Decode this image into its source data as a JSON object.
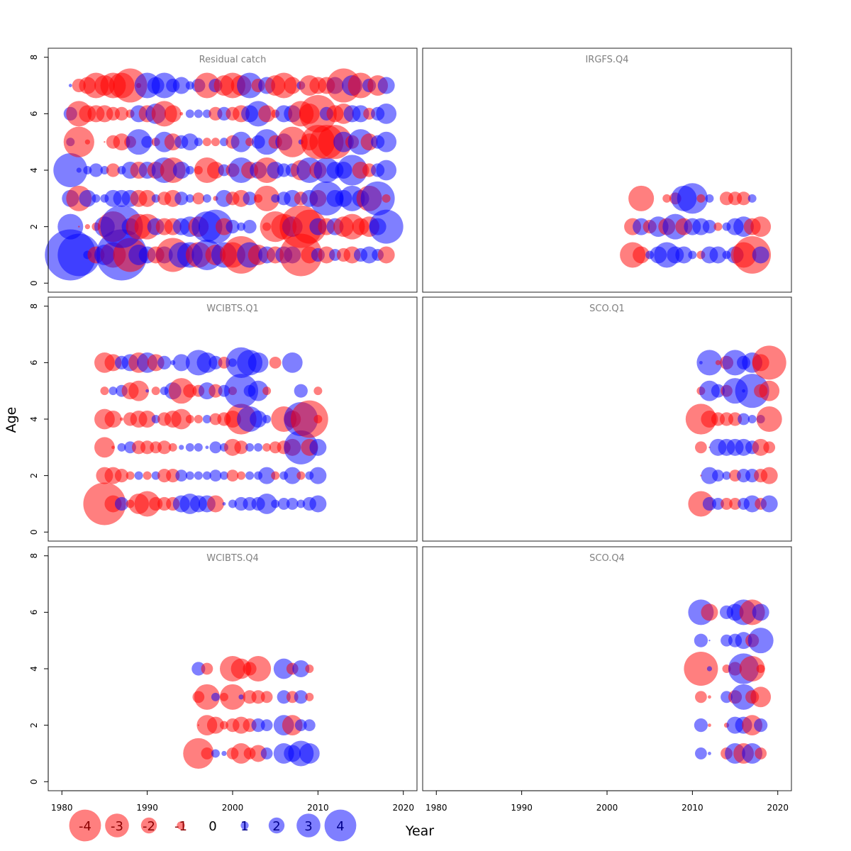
{
  "chart_data": {
    "type": "scatter",
    "subtype": "bubble",
    "xlabel": "Year",
    "ylabel": "Age",
    "xlim": [
      1978.4,
      2021.6
    ],
    "ylim": [
      -0.32,
      8.32
    ],
    "x_ticks": [
      "1980",
      "1990",
      "2000",
      "2010",
      "2020"
    ],
    "y_ticks": [
      "0",
      "2",
      "4",
      "6",
      "8"
    ],
    "colors": {
      "positive": "#0000ff",
      "negative": "#ff0000",
      "alpha": 0.5
    },
    "legend": {
      "values": [
        -4,
        -3,
        -2,
        -1,
        0,
        1,
        2,
        3,
        4
      ],
      "labels": [
        "-4",
        "-3",
        "-2",
        "-1",
        "0",
        "1",
        "2",
        "3",
        "4"
      ],
      "placement": "bottom-left"
    },
    "panels": [
      {
        "title": "Residual catch",
        "ages": [
          1,
          2,
          3,
          4,
          5,
          6,
          7
        ],
        "years": [
          1981,
          1982,
          1983,
          1984,
          1985,
          1986,
          1987,
          1988,
          1989,
          1990,
          1991,
          1992,
          1993,
          1994,
          1995,
          1996,
          1997,
          1998,
          1999,
          2000,
          2001,
          2002,
          2003,
          2004,
          2005,
          2006,
          2007,
          2008,
          2009,
          2010,
          2011,
          2012,
          2013,
          2014,
          2015,
          2016,
          2017,
          2018
        ],
        "residuals": [
          [
            3.0,
            2.5,
            0.5,
            -1.0,
            1.2,
            -1.5,
            3.0,
            -2.0,
            1.2,
            1.0,
            -1.0,
            1.0,
            -2.0,
            1.5,
            1.5,
            -1.5,
            1.8,
            -1.2,
            1.5,
            -1.5,
            -2.2,
            1.5,
            -1.2,
            1.0,
            -1.0,
            1.0,
            1.0,
            -2.5,
            -1.0,
            0.8,
            -1.0,
            0.7,
            -0.8,
            -1.0,
            0.8,
            1.0,
            0.7,
            -1.0
          ],
          [
            1.5,
            -0.1,
            -0.3,
            -0.5,
            1.2,
            -1.8,
            2.5,
            1.0,
            -1.5,
            -1.5,
            1.0,
            -1.0,
            -1.0,
            1.0,
            1.2,
            -1.2,
            1.8,
            2.0,
            -1.0,
            0.8,
            0.5,
            0.8,
            0,
            -0.5,
            -1.8,
            -1.5,
            1.2,
            -2.5,
            -2.0,
            1.0,
            -1.0,
            1.0,
            -1.2,
            -1.5,
            -1.0,
            -1.2,
            1.0,
            2.0
          ],
          [
            1.0,
            -1.5,
            1.0,
            0.5,
            0.5,
            1.0,
            1.0,
            1.0,
            -1.0,
            -1.0,
            0.5,
            -0.8,
            -1.0,
            0.8,
            0.5,
            -0.7,
            0.5,
            -0.3,
            1.0,
            -0.8,
            -1.0,
            0.8,
            -0.5,
            -1.5,
            0.5,
            0.8,
            1.0,
            -0.8,
            1.0,
            -1.0,
            2.0,
            1.0,
            1.0,
            1.5,
            1.0,
            -1.5,
            2.0,
            -0.5
          ],
          [
            2.0,
            0.3,
            0.5,
            0.8,
            0.5,
            -0.8,
            0.5,
            1.0,
            -1.0,
            1.0,
            -1.0,
            1.5,
            -1.5,
            1.0,
            0.5,
            -0.5,
            -1.5,
            -1.0,
            0.7,
            -0.8,
            1.5,
            -1.0,
            1.0,
            -1.5,
            1.0,
            0.8,
            0.8,
            -1.2,
            1.5,
            -1.0,
            1.5,
            1.0,
            1.0,
            1.8,
            -1.0,
            -0.8,
            0.8,
            1.2
          ],
          [
            0.5,
            -1.8,
            -0.3,
            0.0,
            -0.1,
            -0.8,
            -1.0,
            -0.7,
            1.5,
            0.7,
            -0.5,
            1.2,
            -1.0,
            0.8,
            1.0,
            0.5,
            -0.5,
            -0.5,
            0.5,
            -0.8,
            1.2,
            -0.5,
            0.8,
            1.5,
            -0.8,
            1.0,
            -1.8,
            0.3,
            -1.0,
            -2.0,
            -2.0,
            -2.0,
            1.2,
            -0.8,
            1.5,
            -1.0,
            0.8,
            1.2
          ],
          [
            0.8,
            -1.5,
            -1.0,
            -1.0,
            -1.0,
            -0.8,
            -0.8,
            -0.5,
            1.0,
            -1.0,
            1.2,
            -1.5,
            -1.0,
            -0.2,
            0.5,
            0.5,
            0.5,
            -0.8,
            0.8,
            -0.8,
            -1.0,
            1.0,
            1.5,
            -1.0,
            -0.5,
            1.0,
            1.0,
            -1.5,
            -1.2,
            -2.2,
            0.8,
            -1.0,
            -1.2,
            1.0,
            1.0,
            -0.7,
            0.8,
            1.2
          ],
          [
            0.2,
            -0.8,
            -1.0,
            -1.5,
            -1.2,
            -1.5,
            -1.5,
            -2.0,
            -0.3,
            1.5,
            1.0,
            1.5,
            0.8,
            1.0,
            0.5,
            0.8,
            -1.5,
            0.8,
            -1.2,
            -1.5,
            -1.2,
            1.5,
            -0.8,
            1.0,
            -1.2,
            -1.5,
            -1.0,
            0.5,
            -1.2,
            -1.0,
            -1.0,
            1.0,
            -2.0,
            1.2,
            -1.5,
            0.8,
            -1.2,
            1.0
          ]
        ]
      },
      {
        "title": "IRGFS.Q4",
        "ages": [
          1,
          2,
          3
        ],
        "years": [
          2003,
          2004,
          2005,
          2006,
          2007,
          2008,
          2009,
          2010,
          2011,
          2012,
          2013,
          2014,
          2015,
          2016,
          2017,
          2018
        ],
        "residuals": [
          [
            -1.5,
            -1.0,
            0.5,
            1.0,
            1.5,
            1.0,
            1.0,
            0.5,
            -0.5,
            1.0,
            1.0,
            0.5,
            1.0,
            -1.5,
            -2.2,
            1.0
          ],
          [
            -1.0,
            1.0,
            -0.8,
            1.2,
            -1.0,
            1.5,
            -1.0,
            1.0,
            1.0,
            0.8,
            -0.5,
            0.5,
            1.0,
            1.2,
            -1.0,
            -1.2
          ],
          [
            null,
            -1.5,
            null,
            null,
            -0.5,
            -0.7,
            1.5,
            1.8,
            -0.5,
            0.5,
            null,
            -0.8,
            -0.8,
            -0.8,
            0.5,
            null
          ]
        ]
      },
      {
        "title": "WCIBTS.Q1",
        "ages": [
          1,
          2,
          3,
          4,
          5,
          6
        ],
        "years": [
          1985,
          1986,
          1987,
          1988,
          1989,
          1990,
          1991,
          1992,
          1993,
          1994,
          1995,
          1996,
          1997,
          1998,
          1999,
          2000,
          2001,
          2002,
          2003,
          2004,
          2005,
          2006,
          2007,
          2008,
          2009,
          2010
        ],
        "residuals": [
          [
            -2.5,
            -1.0,
            0.8,
            -0.5,
            -1.2,
            -1.5,
            -0.8,
            -0.8,
            -0.8,
            1.0,
            1.2,
            1.0,
            1.0,
            -1.0,
            0.2,
            0.5,
            0.8,
            0.8,
            0.8,
            1.2,
            0.5,
            0.7,
            0.7,
            0.5,
            0.8,
            1.0
          ],
          [
            -1.0,
            -1.0,
            -0.8,
            -0.5,
            0.5,
            -0.5,
            0.5,
            -0.8,
            -0.8,
            0.7,
            0.5,
            0.5,
            0.5,
            0.7,
            0.5,
            -0.7,
            -0.5,
            0.5,
            0.5,
            1.0,
            -0.5,
            0.5,
            1.0,
            -0.5,
            0.5,
            1.0
          ],
          [
            -1.2,
            -0.2,
            0.5,
            0.7,
            -0.8,
            -0.8,
            -0.7,
            -0.8,
            -0.5,
            0.3,
            0.5,
            0.5,
            0.2,
            0.7,
            0.5,
            -1.0,
            -0.8,
            0.5,
            0.5,
            -0.5,
            -0.7,
            -0.8,
            -1.0,
            2.0,
            -1.0,
            1.0
          ],
          [
            -1.2,
            -1.0,
            -0.2,
            -0.8,
            -1.0,
            -1.0,
            0.5,
            -0.8,
            -1.0,
            -1.2,
            -0.5,
            -0.5,
            0.5,
            -0.7,
            -0.8,
            -1.0,
            -1.8,
            1.5,
            1.0,
            0.5,
            null,
            -1.5,
            -1.0,
            2.0,
            -2.2,
            -0.5
          ],
          [
            -0.5,
            0.5,
            0.7,
            -1.0,
            -1.2,
            0.2,
            -0.5,
            0.5,
            1.0,
            -1.5,
            -0.8,
            -0.7,
            1.0,
            -0.8,
            0.7,
            -0.5,
            2.0,
            0.7,
            1.2,
            -0.5,
            null,
            null,
            null,
            0.8,
            null,
            -0.5
          ],
          [
            -1.2,
            -1.0,
            0.8,
            1.0,
            -1.2,
            1.2,
            -1.0,
            0.8,
            0.3,
            1.0,
            null,
            1.5,
            1.2,
            0.8,
            -0.7,
            0.5,
            1.8,
            1.5,
            1.2,
            null,
            -0.7,
            null,
            1.2,
            null,
            null,
            null
          ]
        ]
      },
      {
        "title": "SCO.Q1",
        "ages": [
          1,
          2,
          3,
          4,
          5,
          6
        ],
        "years": [
          2011,
          2012,
          2013,
          2014,
          2015,
          2016,
          2017,
          2018,
          2019
        ],
        "residuals": [
          [
            -1.5,
            0.8,
            0.7,
            -0.7,
            -0.7,
            0.7,
            1.0,
            -0.7,
            1.0
          ],
          [
            -0.1,
            1.0,
            0.7,
            0.5,
            -0.7,
            0.8,
            0.8,
            -0.8,
            -1.0
          ],
          [
            -0.7,
            -0.1,
            1.0,
            1.0,
            1.0,
            1.0,
            0.8,
            -1.0,
            -0.7
          ],
          [
            -1.8,
            -1.0,
            -0.8,
            -0.8,
            -0.8,
            0.7,
            0.5,
            0.5,
            -1.5
          ],
          [
            -0.5,
            1.2,
            0.8,
            -0.7,
            1.5,
            0.2,
            2.0,
            -0.8,
            -1.2
          ],
          [
            0.2,
            1.5,
            -0.3,
            -0.8,
            1.5,
            0.8,
            1.2,
            -1.0,
            -2.0
          ]
        ]
      },
      {
        "title": "WCIBTS.Q4",
        "ages": [
          1,
          2,
          3,
          4
        ],
        "years": [
          1996,
          1997,
          1998,
          1999,
          2000,
          2001,
          2002,
          2003,
          2004,
          2005,
          2006,
          2007,
          2008,
          2009
        ],
        "residuals": [
          [
            -1.8,
            -0.7,
            0.5,
            0.3,
            -0.7,
            -1.2,
            -0.7,
            -1.0,
            0.7,
            null,
            1.2,
            1.0,
            1.5,
            1.2
          ],
          [
            -0.1,
            -1.2,
            -1.0,
            -0.5,
            -0.8,
            -1.0,
            -0.8,
            0.8,
            0.7,
            null,
            1.2,
            -1.2,
            0.7,
            0.7
          ],
          [
            -0.7,
            -1.5,
            0.5,
            -0.5,
            -1.5,
            0.3,
            -0.8,
            -0.8,
            -0.7,
            null,
            0.8,
            -0.7,
            0.8,
            -0.5
          ],
          [
            0.8,
            -0.7,
            null,
            null,
            -1.5,
            -1.2,
            -0.8,
            -1.5,
            null,
            null,
            1.2,
            -0.7,
            1.0,
            -0.5
          ]
        ]
      },
      {
        "title": "SCO.Q4",
        "ages": [
          1,
          2,
          3,
          4,
          5,
          6
        ],
        "years": [
          2011,
          2012,
          2013,
          2014,
          2015,
          2016,
          2017,
          2018
        ],
        "residuals": [
          [
            0.7,
            0.2,
            null,
            -0.7,
            1.2,
            -1.2,
            1.2,
            -0.7
          ],
          [
            0.8,
            -0.2,
            null,
            -0.3,
            1.0,
            1.0,
            -1.2,
            0.8
          ],
          [
            -0.7,
            -0.2,
            null,
            0.7,
            -0.8,
            1.5,
            -0.8,
            -1.2
          ],
          [
            -2.0,
            0.3,
            null,
            -0.5,
            -0.8,
            1.8,
            -1.5,
            -0.5
          ],
          [
            0.8,
            0.1,
            null,
            0.7,
            0.8,
            1.0,
            -0.8,
            1.5
          ],
          [
            1.5,
            -1.0,
            null,
            0.8,
            1.0,
            1.5,
            -1.5,
            1.0
          ]
        ]
      }
    ]
  }
}
